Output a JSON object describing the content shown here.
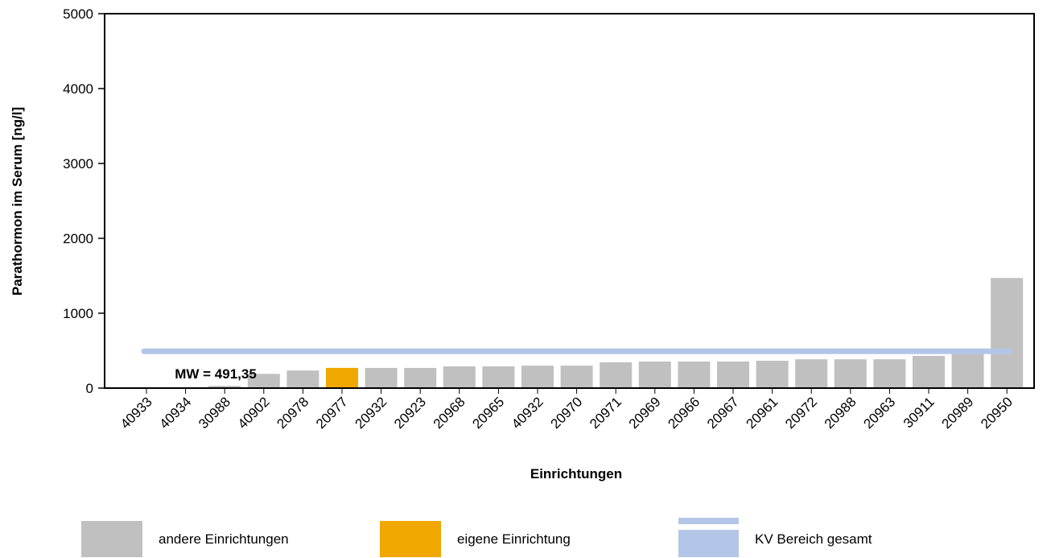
{
  "chart_data": {
    "type": "bar",
    "x_label": "Einrichtungen",
    "y_label": "Parathormon im Serum [ng/l]",
    "categories": [
      "40933",
      "40934",
      "30988",
      "40902",
      "20978",
      "20977",
      "20932",
      "20923",
      "20968",
      "20965",
      "40932",
      "20970",
      "20971",
      "20969",
      "20966",
      "20967",
      "20961",
      "20972",
      "20988",
      "20963",
      "30911",
      "20989",
      "20950"
    ],
    "series": [
      {
        "name": "andere Einrichtungen",
        "color": "#c0c0c0",
        "values": [
          0,
          0,
          30,
          190,
          235,
          null,
          270,
          270,
          290,
          290,
          300,
          300,
          345,
          355,
          355,
          355,
          365,
          385,
          385,
          385,
          430,
          470,
          1470
        ]
      },
      {
        "name": "eigene Einrichtung",
        "color": "#f0a800",
        "values": [
          null,
          null,
          null,
          null,
          null,
          270,
          null,
          null,
          null,
          null,
          null,
          null,
          null,
          null,
          null,
          null,
          null,
          null,
          null,
          null,
          null,
          null,
          null
        ]
      }
    ],
    "reference_line": {
      "name": "KV Bereich gesamt",
      "value": 491.35,
      "label": "MW = 491,35",
      "color": "#b4c6e7"
    },
    "ylim": [
      0,
      5000
    ],
    "yticks": [
      0,
      1000,
      2000,
      3000,
      4000,
      5000
    ],
    "grid": false
  }
}
